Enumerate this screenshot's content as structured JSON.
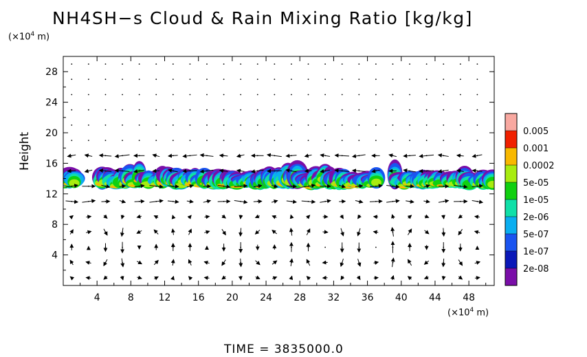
{
  "chart_data": {
    "type": "heatmap",
    "title": "NH4SH−s Cloud & Rain Mixing Ratio [kg/kg]",
    "ylabel": "Height",
    "x_unit": "(×10",
    "x_unit_exp": "4",
    "x_unit_end": " m)",
    "y_unit": "(×10",
    "y_unit_exp": "4",
    "y_unit_end": " m)",
    "xlim": [
      0,
      51
    ],
    "ylim": [
      0,
      30
    ],
    "x_ticks": [
      4,
      8,
      12,
      16,
      20,
      24,
      28,
      32,
      36,
      40,
      44,
      48
    ],
    "y_ticks": [
      4,
      8,
      12,
      16,
      20,
      24,
      28
    ],
    "colorbar": {
      "levels": [
        "2e-08",
        "1e-07",
        "5e-07",
        "2e-06",
        "1e-05",
        "5e-05",
        "0.0002",
        "0.001",
        "0.005"
      ],
      "colors": [
        "#7a0ea8",
        "#0a18b8",
        "#1a54f0",
        "#0aaef0",
        "#10e0a8",
        "#10d010",
        "#a8ec10",
        "#f8b800",
        "#f02000",
        "#f8a8a0"
      ]
    },
    "cloud_layer": {
      "bottom": 12.4,
      "top": 16.2,
      "peak_level": "0.0002"
    },
    "circulation": [
      {
        "x": 3.5,
        "rotation": "clockwise"
      },
      {
        "x": 9.5,
        "rotation": "counterclockwise"
      },
      {
        "x": 17.5,
        "rotation": "clockwise"
      },
      {
        "x": 24,
        "rotation": "counterclockwise"
      },
      {
        "x": 31,
        "rotation": "clockwise"
      },
      {
        "x": 37,
        "rotation": "counterclockwise"
      },
      {
        "x": 42,
        "rotation": "clockwise"
      },
      {
        "x": 48.5,
        "rotation": "counterclockwise"
      }
    ],
    "grid": false,
    "legend": "right"
  },
  "footer": {
    "time_label": "TIME  =  3835000.0"
  }
}
